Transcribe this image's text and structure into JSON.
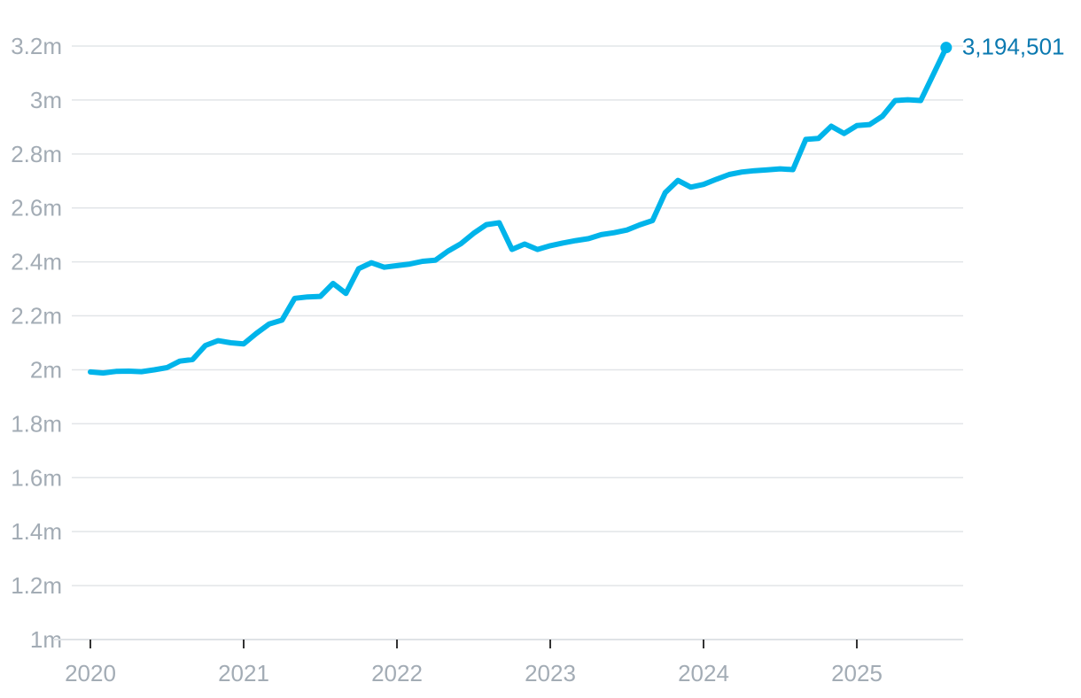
{
  "chart_data": {
    "type": "line",
    "title": "",
    "xlabel": "",
    "ylabel": "",
    "ylim": [
      1000000,
      3200000
    ],
    "y_tick_values": [
      1000000,
      1200000,
      1400000,
      1600000,
      1800000,
      2000000,
      2200000,
      2400000,
      2600000,
      2800000,
      3000000,
      3200000
    ],
    "y_tick_labels": [
      "1m",
      "1.2m",
      "1.4m",
      "1.6m",
      "1.8m",
      "2m",
      "2.2m",
      "2.4m",
      "2.6m",
      "2.8m",
      "3m",
      "3.2m"
    ],
    "x_tick_values": [
      2020,
      2021,
      2022,
      2023,
      2024,
      2025
    ],
    "x_tick_labels": [
      "2020",
      "2021",
      "2022",
      "2023",
      "2024",
      "2025"
    ],
    "grid": true,
    "series": [
      {
        "color": "#00b4ea",
        "x": [
          2020.0,
          2020.083,
          2020.167,
          2020.25,
          2020.333,
          2020.417,
          2020.5,
          2020.583,
          2020.667,
          2020.75,
          2020.833,
          2020.917,
          2021.0,
          2021.083,
          2021.167,
          2021.25,
          2021.333,
          2021.417,
          2021.5,
          2021.583,
          2021.667,
          2021.75,
          2021.833,
          2021.917,
          2022.0,
          2022.083,
          2022.167,
          2022.25,
          2022.333,
          2022.417,
          2022.5,
          2022.583,
          2022.667,
          2022.75,
          2022.833,
          2022.917,
          2023.0,
          2023.083,
          2023.167,
          2023.25,
          2023.333,
          2023.417,
          2023.5,
          2023.583,
          2023.667,
          2023.75,
          2023.833,
          2023.917,
          2024.0,
          2024.083,
          2024.167,
          2024.25,
          2024.333,
          2024.417,
          2024.5,
          2024.583,
          2024.667,
          2024.75,
          2024.833,
          2024.917,
          2025.0,
          2025.083,
          2025.167,
          2025.25,
          2025.333,
          2025.417,
          2025.5,
          2025.583
        ],
        "values": [
          1992000,
          1988000,
          1994000,
          1995000,
          1993000,
          2000000,
          2008000,
          2032000,
          2038000,
          2090000,
          2108000,
          2100000,
          2096000,
          2135000,
          2170000,
          2184000,
          2265000,
          2270000,
          2272000,
          2320000,
          2283000,
          2375000,
          2397000,
          2380000,
          2386000,
          2392000,
          2402000,
          2406000,
          2440000,
          2467000,
          2506000,
          2538000,
          2545000,
          2446000,
          2466000,
          2446000,
          2460000,
          2470000,
          2479000,
          2486000,
          2501000,
          2508000,
          2518000,
          2537000,
          2553000,
          2657000,
          2702000,
          2677000,
          2687000,
          2706000,
          2724000,
          2733000,
          2738000,
          2741000,
          2745000,
          2742000,
          2854000,
          2858000,
          2903000,
          2876000,
          2905000,
          2909000,
          2940000,
          2998000,
          3001000,
          2998000,
          3096000,
          3194501
        ]
      }
    ],
    "end_label": "3,194,501"
  }
}
